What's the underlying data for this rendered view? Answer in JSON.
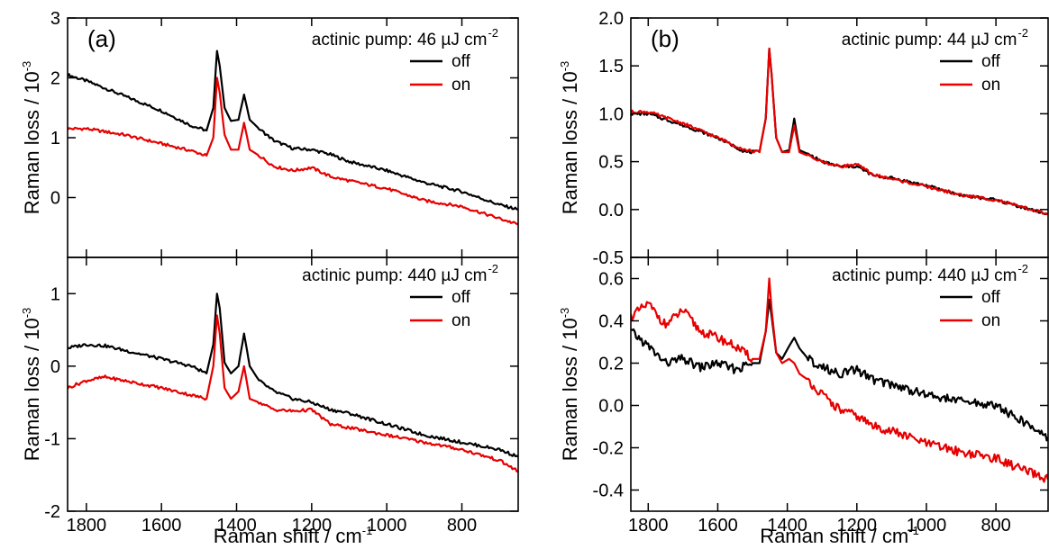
{
  "chart_data": [
    {
      "panel": "(a)",
      "type": "line",
      "xlabel": "Raman shift / cm",
      "xlabel_sup": "-1",
      "xlim": [
        1850,
        650
      ],
      "xticks": [
        1800,
        1600,
        1400,
        1200,
        1000,
        800
      ],
      "xtick_labels": [
        "1800",
        "1600",
        "1400",
        "1200",
        "1000",
        "800"
      ],
      "subplots": [
        {
          "annotation": "actinic pump: 46 µJ cm",
          "annotation_sup": "-2",
          "ylabel": "Raman loss / 10",
          "ylabel_sup": "-3",
          "ylim": [
            -1,
            3
          ],
          "yticks": [
            0,
            1,
            2,
            3
          ],
          "ytick_labels": [
            "0",
            "1",
            "2",
            "3"
          ],
          "series": [
            {
              "name": "off",
              "color": "#000000",
              "x": [
                1850,
                1800,
                1700,
                1600,
                1520,
                1480,
                1462,
                1452,
                1445,
                1432,
                1415,
                1395,
                1380,
                1365,
                1340,
                1300,
                1250,
                1200,
                1150,
                1100,
                1000,
                900,
                800,
                700,
                650
              ],
              "y": [
                2.05,
                1.95,
                1.7,
                1.45,
                1.2,
                1.12,
                1.5,
                2.45,
                2.2,
                1.5,
                1.28,
                1.3,
                1.72,
                1.3,
                1.15,
                0.95,
                0.82,
                0.8,
                0.72,
                0.6,
                0.45,
                0.25,
                0.1,
                -0.12,
                -0.2
              ]
            },
            {
              "name": "on",
              "color": "#e60000",
              "x": [
                1850,
                1800,
                1700,
                1600,
                1520,
                1480,
                1462,
                1452,
                1445,
                1432,
                1415,
                1395,
                1380,
                1365,
                1340,
                1300,
                1250,
                1200,
                1150,
                1100,
                1000,
                900,
                800,
                700,
                650
              ],
              "y": [
                1.15,
                1.15,
                1.05,
                0.9,
                0.78,
                0.7,
                1.0,
                2.0,
                1.75,
                1.05,
                0.8,
                0.8,
                1.25,
                0.8,
                0.7,
                0.52,
                0.45,
                0.5,
                0.35,
                0.28,
                0.15,
                -0.05,
                -0.15,
                -0.35,
                -0.45
              ]
            }
          ]
        },
        {
          "annotation": "actinic pump: 440 µJ cm",
          "annotation_sup": "-2",
          "ylabel": "Raman loss / 10",
          "ylabel_sup": "-3",
          "ylim": [
            -2,
            1.5
          ],
          "yticks": [
            -2,
            -1,
            0,
            1
          ],
          "ytick_labels": [
            "-2",
            "-1",
            "0",
            "1"
          ],
          "series": [
            {
              "name": "off",
              "color": "#000000",
              "x": [
                1850,
                1800,
                1750,
                1700,
                1600,
                1520,
                1480,
                1462,
                1452,
                1445,
                1432,
                1415,
                1395,
                1380,
                1365,
                1340,
                1300,
                1250,
                1200,
                1150,
                1100,
                1000,
                900,
                800,
                700,
                650
              ],
              "y": [
                0.25,
                0.3,
                0.28,
                0.22,
                0.1,
                0.0,
                -0.1,
                0.3,
                1.0,
                0.8,
                0.05,
                -0.1,
                0.0,
                0.45,
                0.0,
                -0.2,
                -0.35,
                -0.45,
                -0.5,
                -0.6,
                -0.65,
                -0.8,
                -0.95,
                -1.05,
                -1.15,
                -1.25
              ]
            },
            {
              "name": "on",
              "color": "#e60000",
              "x": [
                1850,
                1800,
                1750,
                1700,
                1600,
                1520,
                1480,
                1462,
                1452,
                1445,
                1432,
                1415,
                1395,
                1380,
                1365,
                1340,
                1300,
                1250,
                1200,
                1150,
                1100,
                1000,
                900,
                800,
                700,
                650
              ],
              "y": [
                -0.3,
                -0.2,
                -0.15,
                -0.2,
                -0.3,
                -0.4,
                -0.45,
                0.0,
                0.7,
                0.45,
                -0.3,
                -0.45,
                -0.35,
                0.0,
                -0.45,
                -0.5,
                -0.6,
                -0.62,
                -0.6,
                -0.8,
                -0.85,
                -0.95,
                -1.05,
                -1.15,
                -1.3,
                -1.45
              ]
            }
          ]
        }
      ]
    },
    {
      "panel": "(b)",
      "type": "line",
      "xlabel": "Raman shift / cm",
      "xlabel_sup": "-1",
      "xlim": [
        1850,
        650
      ],
      "xticks": [
        1800,
        1600,
        1400,
        1200,
        1000,
        800
      ],
      "xtick_labels": [
        "1800",
        "1600",
        "1400",
        "1200",
        "1000",
        "800"
      ],
      "subplots": [
        {
          "annotation": "actinic pump: 44 µJ cm",
          "annotation_sup": "-2",
          "ylabel": "Raman loss / 10",
          "ylabel_sup": "-3",
          "ylim": [
            -0.5,
            2.0
          ],
          "yticks": [
            -0.5,
            0.0,
            0.5,
            1.0,
            1.5,
            2.0
          ],
          "ytick_labels": [
            "-0.5",
            "0.0",
            "0.5",
            "1.0",
            "1.5",
            "2.0"
          ],
          "series": [
            {
              "name": "off",
              "color": "#000000",
              "x": [
                1850,
                1800,
                1700,
                1600,
                1520,
                1480,
                1462,
                1452,
                1445,
                1432,
                1415,
                1395,
                1380,
                1365,
                1340,
                1300,
                1250,
                1200,
                1150,
                1100,
                1000,
                900,
                800,
                700,
                650
              ],
              "y": [
                1.0,
                1.0,
                0.88,
                0.75,
                0.6,
                0.6,
                0.95,
                1.68,
                1.4,
                0.75,
                0.6,
                0.62,
                0.95,
                0.62,
                0.58,
                0.5,
                0.45,
                0.45,
                0.35,
                0.33,
                0.25,
                0.15,
                0.1,
                0.0,
                -0.05
              ]
            },
            {
              "name": "on",
              "color": "#e60000",
              "x": [
                1850,
                1800,
                1700,
                1600,
                1520,
                1480,
                1462,
                1452,
                1445,
                1432,
                1415,
                1395,
                1380,
                1365,
                1340,
                1300,
                1250,
                1200,
                1150,
                1100,
                1000,
                900,
                800,
                700,
                650
              ],
              "y": [
                1.02,
                1.02,
                0.9,
                0.75,
                0.62,
                0.6,
                0.95,
                1.68,
                1.4,
                0.75,
                0.6,
                0.6,
                0.88,
                0.6,
                0.56,
                0.5,
                0.45,
                0.47,
                0.36,
                0.32,
                0.24,
                0.15,
                0.1,
                0.0,
                -0.05
              ]
            }
          ]
        },
        {
          "annotation": "actinic pump: 440 µJ cm",
          "annotation_sup": "-2",
          "ylabel": "Raman loss / 10",
          "ylabel_sup": "-3",
          "ylim": [
            -0.5,
            0.7
          ],
          "yticks": [
            -0.4,
            -0.2,
            0.0,
            0.2,
            0.4,
            0.6
          ],
          "ytick_labels": [
            "-0.4",
            "-0.2",
            "0.0",
            "0.2",
            "0.4",
            "0.6"
          ],
          "series": [
            {
              "name": "off",
              "color": "#000000",
              "x": [
                1850,
                1800,
                1750,
                1700,
                1650,
                1600,
                1550,
                1500,
                1480,
                1462,
                1452,
                1445,
                1432,
                1415,
                1395,
                1380,
                1365,
                1340,
                1300,
                1250,
                1200,
                1150,
                1100,
                1000,
                900,
                800,
                700,
                650
              ],
              "y": [
                0.35,
                0.28,
                0.2,
                0.22,
                0.18,
                0.2,
                0.17,
                0.2,
                0.2,
                0.35,
                0.5,
                0.42,
                0.25,
                0.22,
                0.28,
                0.32,
                0.27,
                0.22,
                0.18,
                0.15,
                0.17,
                0.12,
                0.1,
                0.05,
                0.02,
                0.0,
                -0.1,
                -0.15
              ]
            },
            {
              "name": "on",
              "color": "#e60000",
              "x": [
                1850,
                1800,
                1750,
                1700,
                1650,
                1600,
                1550,
                1500,
                1480,
                1462,
                1452,
                1445,
                1432,
                1415,
                1395,
                1380,
                1365,
                1340,
                1300,
                1250,
                1200,
                1150,
                1100,
                1000,
                900,
                800,
                700,
                650
              ],
              "y": [
                0.42,
                0.48,
                0.38,
                0.45,
                0.35,
                0.32,
                0.28,
                0.22,
                0.22,
                0.35,
                0.6,
                0.45,
                0.25,
                0.2,
                0.22,
                0.2,
                0.15,
                0.12,
                0.05,
                -0.02,
                -0.05,
                -0.1,
                -0.12,
                -0.18,
                -0.22,
                -0.25,
                -0.32,
                -0.35
              ]
            }
          ]
        }
      ]
    }
  ]
}
